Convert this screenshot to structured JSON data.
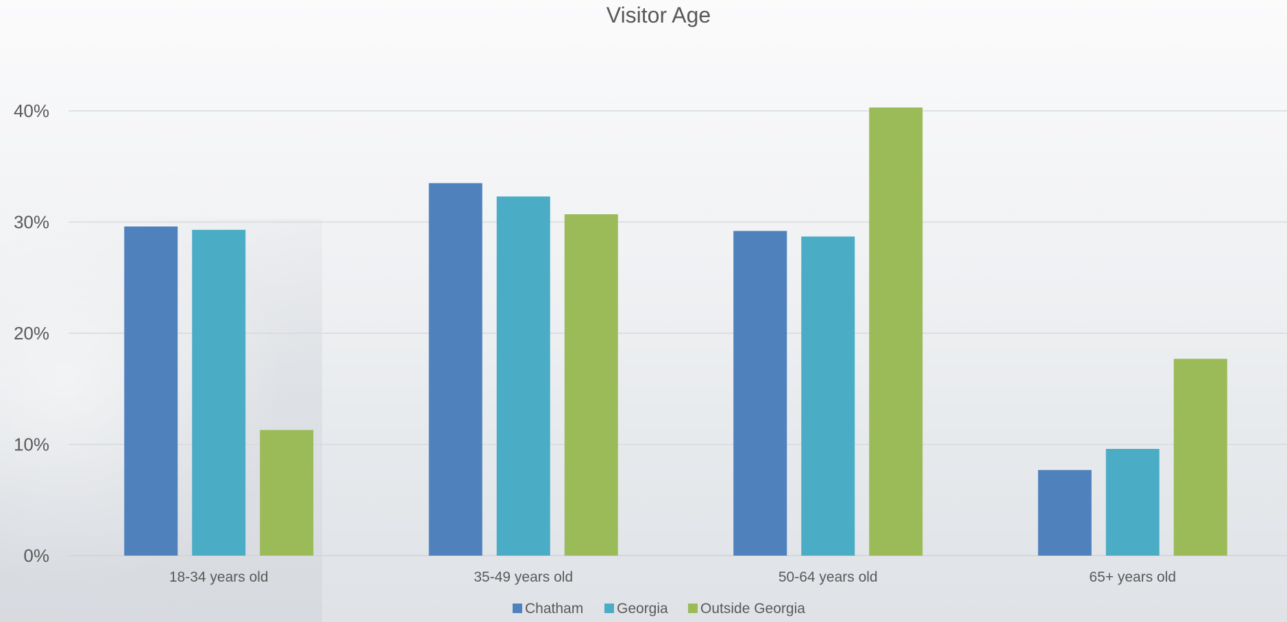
{
  "chart_data": {
    "type": "bar",
    "title": "Visitor Age",
    "xlabel": "",
    "ylabel": "",
    "categories": [
      "18-34 years old",
      "35-49 years old",
      "50-64 years old",
      "65+ years old"
    ],
    "series": [
      {
        "name": "Chatham",
        "color": "#4f81bd",
        "values": [
          29.6,
          33.5,
          29.2,
          7.7
        ]
      },
      {
        "name": "Georgia",
        "color": "#4bacc6",
        "values": [
          29.3,
          32.3,
          28.7,
          9.6
        ]
      },
      {
        "name": "Outside Georgia",
        "color": "#9bbb59",
        "values": [
          11.3,
          30.7,
          40.3,
          17.7
        ]
      }
    ],
    "ylim": [
      0,
      40
    ],
    "yticks": [
      "0%",
      "10%",
      "20%",
      "30%",
      "40%"
    ],
    "grid": true,
    "legend_position": "bottom"
  }
}
